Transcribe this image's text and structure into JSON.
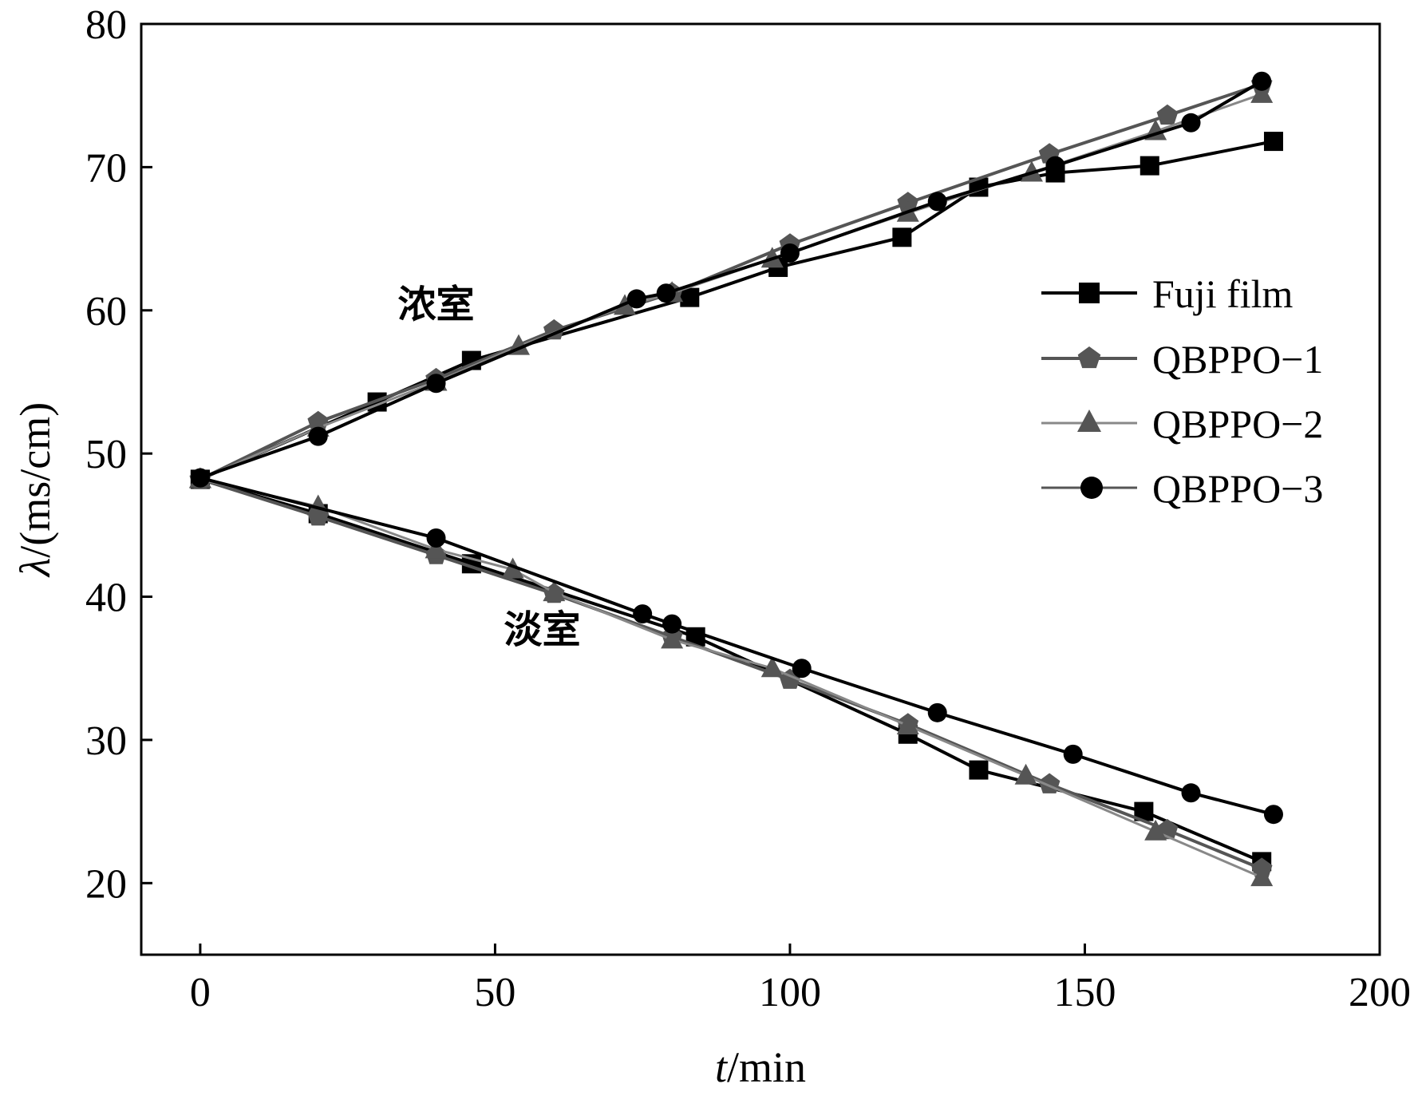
{
  "chart_data": {
    "type": "line",
    "title": "",
    "xlabel_italic": "t",
    "xlabel_rest": "/min",
    "ylabel_italic": "λ",
    "ylabel_rest": "/(ms/cm)",
    "xlim": [
      -10,
      200
    ],
    "ylim": [
      15,
      80
    ],
    "xticks": [
      0,
      50,
      100,
      150,
      200
    ],
    "yticks": [
      20,
      30,
      40,
      50,
      60,
      70,
      80
    ],
    "grid": false,
    "legend_position": "right",
    "annotations": [
      {
        "text": "浓室",
        "x": 40,
        "y": 59.5
      },
      {
        "text": "淡室",
        "x": 58,
        "y": 36.8
      }
    ],
    "series": [
      {
        "name": "Fuji film",
        "marker": "square",
        "color": "#000000",
        "lines": [
          {
            "x": [
              0,
              30,
              46,
              83,
              98,
              119,
              132,
              145,
              161,
              182
            ],
            "y": [
              48.2,
              53.6,
              56.5,
              60.9,
              63.0,
              65.1,
              68.6,
              69.6,
              70.1,
              71.8
            ]
          },
          {
            "x": [
              0,
              20,
              46,
              84,
              120,
              132,
              160,
              180
            ],
            "y": [
              48.2,
              45.8,
              42.3,
              37.2,
              30.4,
              27.9,
              25.0,
              21.5
            ]
          }
        ]
      },
      {
        "name": "QBPPO−1",
        "marker": "pentagon",
        "color": "#555555",
        "lines": [
          {
            "x": [
              0,
              20,
              40,
              60,
              80,
              100,
              120,
              144,
              164,
              180
            ],
            "y": [
              48.2,
              52.2,
              55.2,
              58.6,
              61.2,
              64.6,
              67.5,
              70.9,
              73.6,
              75.8
            ]
          },
          {
            "x": [
              0,
              20,
              40,
              60,
              80,
              100,
              120,
              144,
              164,
              180
            ],
            "y": [
              48.2,
              45.6,
              42.9,
              40.2,
              37.2,
              34.2,
              31.1,
              26.9,
              23.7,
              21.0
            ]
          }
        ]
      },
      {
        "name": "QBPPO−2",
        "marker": "triangle",
        "color": "#888888",
        "lines": [
          {
            "x": [
              0,
              20,
              40,
              54,
              72,
              80,
              97,
              120,
              141,
              162,
              180
            ],
            "y": [
              48.2,
              51.8,
              55.0,
              57.5,
              60.3,
              61.2,
              63.6,
              66.8,
              69.6,
              72.5,
              75.1
            ]
          },
          {
            "x": [
              0,
              20,
              40,
              53,
              60,
              80,
              97,
              120,
              140,
              162,
              180
            ],
            "y": [
              48.2,
              46.3,
              43.3,
              41.9,
              40.3,
              37.0,
              35.0,
              31.0,
              27.5,
              23.6,
              20.4
            ]
          }
        ]
      },
      {
        "name": "QBPPO−3",
        "marker": "circle",
        "color": "#000000",
        "lines": [
          {
            "x": [
              0,
              20,
              40,
              74,
              79,
              100,
              125,
              145,
              168,
              180
            ],
            "y": [
              48.3,
              51.2,
              54.9,
              60.8,
              61.2,
              64.0,
              67.6,
              70.1,
              73.1,
              76.0
            ]
          },
          {
            "x": [
              0,
              40,
              75,
              80,
              102,
              125,
              148,
              168,
              182
            ],
            "y": [
              48.3,
              44.1,
              38.8,
              38.1,
              35.0,
              31.9,
              29.0,
              26.3,
              24.8
            ]
          }
        ]
      }
    ]
  }
}
